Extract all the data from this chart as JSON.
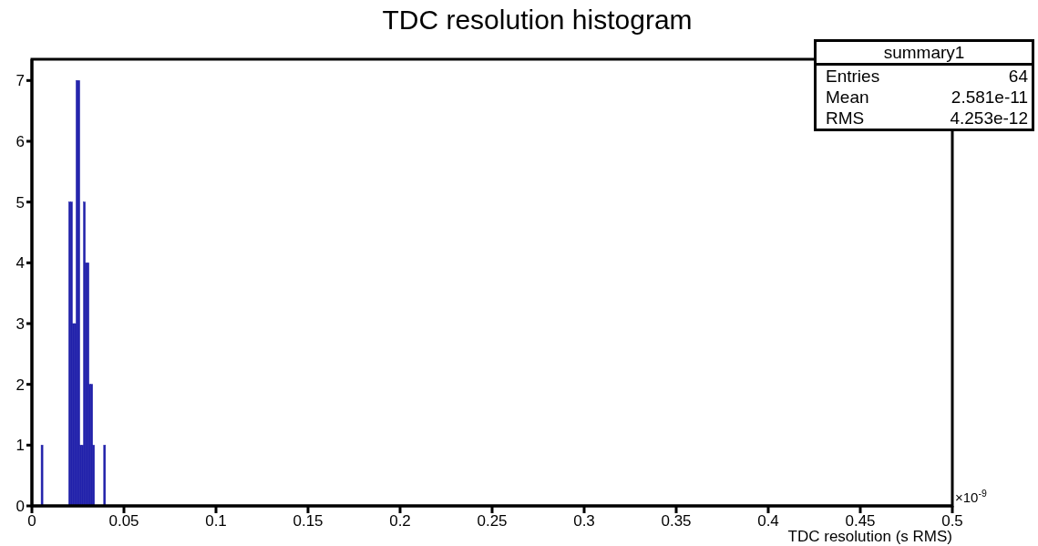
{
  "chart_data": {
    "type": "histogram",
    "title": "TDC resolution histogram",
    "xlabel": "TDC resolution (s RMS)",
    "bins": [
      0.005,
      0.006,
      0.007,
      0.008,
      0.009,
      0.01,
      0.011,
      0.012,
      0.013,
      0.014,
      0.015,
      0.016,
      0.017,
      0.018,
      0.019,
      0.02,
      0.021,
      0.022,
      0.023,
      0.024,
      0.025,
      0.026,
      0.027,
      0.028,
      0.029,
      0.03,
      0.031,
      0.032,
      0.033,
      0.034,
      0.035,
      0.036,
      0.037,
      0.038,
      0.039,
      0.04
    ],
    "values": [
      1,
      0,
      0,
      0,
      0,
      0,
      0,
      0,
      0,
      0,
      0,
      0,
      0,
      0,
      0,
      5,
      5,
      3,
      3,
      7,
      7,
      1,
      1,
      5,
      4,
      4,
      2,
      2,
      1,
      0,
      0,
      0,
      0,
      0,
      1
    ],
    "color": "#2020aa",
    "xlim": [
      0,
      0.5
    ],
    "xticks": [
      0,
      0.05,
      0.1,
      0.15,
      0.2,
      0.25,
      0.3,
      0.35,
      0.4,
      0.45,
      0.5
    ],
    "ylim": [
      0,
      7.35
    ],
    "yticks": [
      0,
      1,
      2,
      3,
      4,
      5,
      6,
      7
    ],
    "grid": false,
    "annotations": [
      "summary1",
      "Entries",
      "64",
      "Mean",
      "2.581e-11",
      "RMS",
      "4.253e-12",
      "×10$^{-9}$"
    ]
  }
}
